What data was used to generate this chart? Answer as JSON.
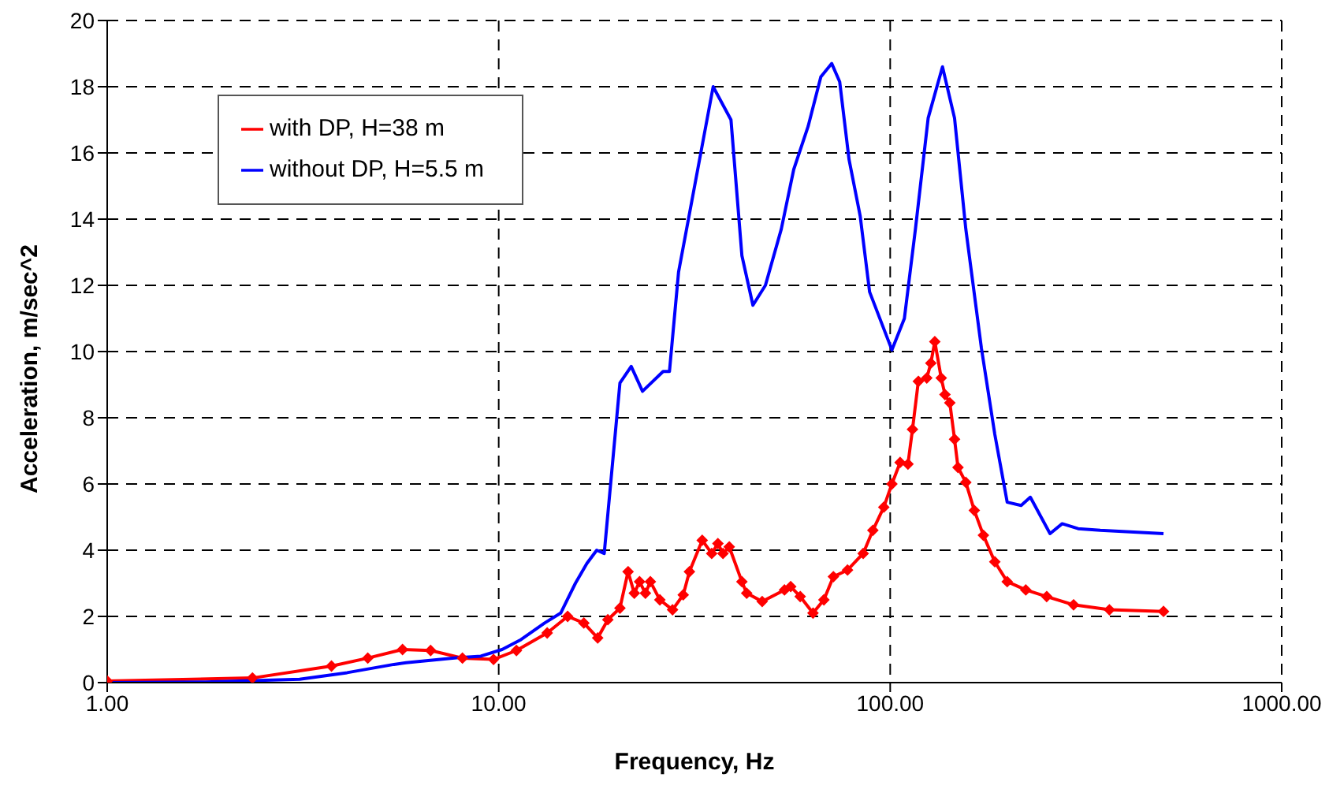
{
  "chart_data": {
    "type": "line",
    "xlabel": "Frequency, Hz",
    "ylabel": "Acceleration, m/sec^2",
    "log": "x",
    "xlim": [
      1,
      1000
    ],
    "xticks": [
      {
        "value": 1,
        "label": "1.00"
      },
      {
        "value": 10,
        "label": "10.00"
      },
      {
        "value": 100,
        "label": "100.00"
      },
      {
        "value": 1000,
        "label": "1000.00"
      }
    ],
    "ylim": [
      0,
      20
    ],
    "yticks": [
      0,
      2,
      4,
      6,
      8,
      10,
      12,
      14,
      16,
      18,
      20
    ],
    "grid": true,
    "line_style": "solid",
    "legend": "top left",
    "series": [
      {
        "name": "with DP, H=38 m",
        "color": "#ff0000",
        "marker": "diamond",
        "x": [
          1,
          2.35,
          3.74,
          4.63,
          5.68,
          6.7,
          8.08,
          9.7,
          11.1,
          13.3,
          15,
          16.5,
          17.9,
          19,
          20.4,
          21.4,
          22.2,
          22.9,
          23.7,
          24.4,
          25.8,
          27.8,
          29.6,
          30.7,
          33.1,
          35,
          36.3,
          37.4,
          38.8,
          41.8,
          43,
          47.1,
          53.7,
          55.7,
          58.9,
          63.5,
          67.7,
          71.6,
          77.8,
          85.3,
          90.3,
          96.3,
          101,
          106,
          111,
          114,
          118,
          124,
          127,
          130,
          135,
          138,
          142,
          146,
          149,
          156,
          164,
          173,
          185,
          199,
          222,
          251,
          294,
          363,
          499
        ],
        "values": [
          0.05,
          0.14,
          0.5,
          0.74,
          1.0,
          0.97,
          0.74,
          0.7,
          0.97,
          1.5,
          2.0,
          1.8,
          1.35,
          1.9,
          2.25,
          3.35,
          2.7,
          3.05,
          2.7,
          3.05,
          2.5,
          2.2,
          2.65,
          3.35,
          4.3,
          3.9,
          4.2,
          3.9,
          4.1,
          3.05,
          2.7,
          2.45,
          2.8,
          2.9,
          2.6,
          2.1,
          2.5,
          3.2,
          3.4,
          3.9,
          4.6,
          5.3,
          6.0,
          6.65,
          6.6,
          7.65,
          9.1,
          9.2,
          9.65,
          10.3,
          9.2,
          8.7,
          8.45,
          7.35,
          6.5,
          6.05,
          5.2,
          4.45,
          3.65,
          3.05,
          2.8,
          2.6,
          2.35,
          2.2,
          2.15
        ]
      },
      {
        "name": "without DP, H=5.5 m",
        "color": "#0000ff",
        "marker": "none",
        "x": [
          1,
          1.78,
          3.1,
          4.1,
          5.4,
          5.8,
          7.8,
          9,
          10.2,
          11.4,
          13.1,
          14.4,
          15.7,
          16.8,
          17.8,
          18.6,
          20.4,
          21.8,
          23.3,
          26.3,
          27.3,
          28.8,
          35.3,
          39.2,
          41.8,
          44.6,
          48,
          52.7,
          56.7,
          61.7,
          66.5,
          70.9,
          74.3,
          78.5,
          83.8,
          88.6,
          101,
          108.7,
          116,
          125,
          136,
          146,
          156,
          171,
          185,
          199,
          216,
          228,
          256,
          275,
          302,
          344,
          499
        ],
        "values": [
          0,
          0.02,
          0.1,
          0.3,
          0.55,
          0.6,
          0.75,
          0.8,
          1.0,
          1.3,
          1.8,
          2.1,
          3.0,
          3.6,
          4.0,
          3.9,
          9.05,
          9.55,
          8.8,
          9.4,
          9.4,
          12.4,
          18.0,
          17.0,
          12.9,
          11.4,
          12.0,
          13.7,
          15.5,
          16.8,
          18.3,
          18.7,
          18.15,
          15.8,
          14.1,
          11.8,
          10.05,
          11.0,
          13.7,
          17.05,
          18.6,
          17.05,
          13.7,
          10.1,
          7.5,
          5.45,
          5.35,
          5.6,
          4.5,
          4.8,
          4.65,
          4.6,
          4.5
        ]
      }
    ]
  }
}
